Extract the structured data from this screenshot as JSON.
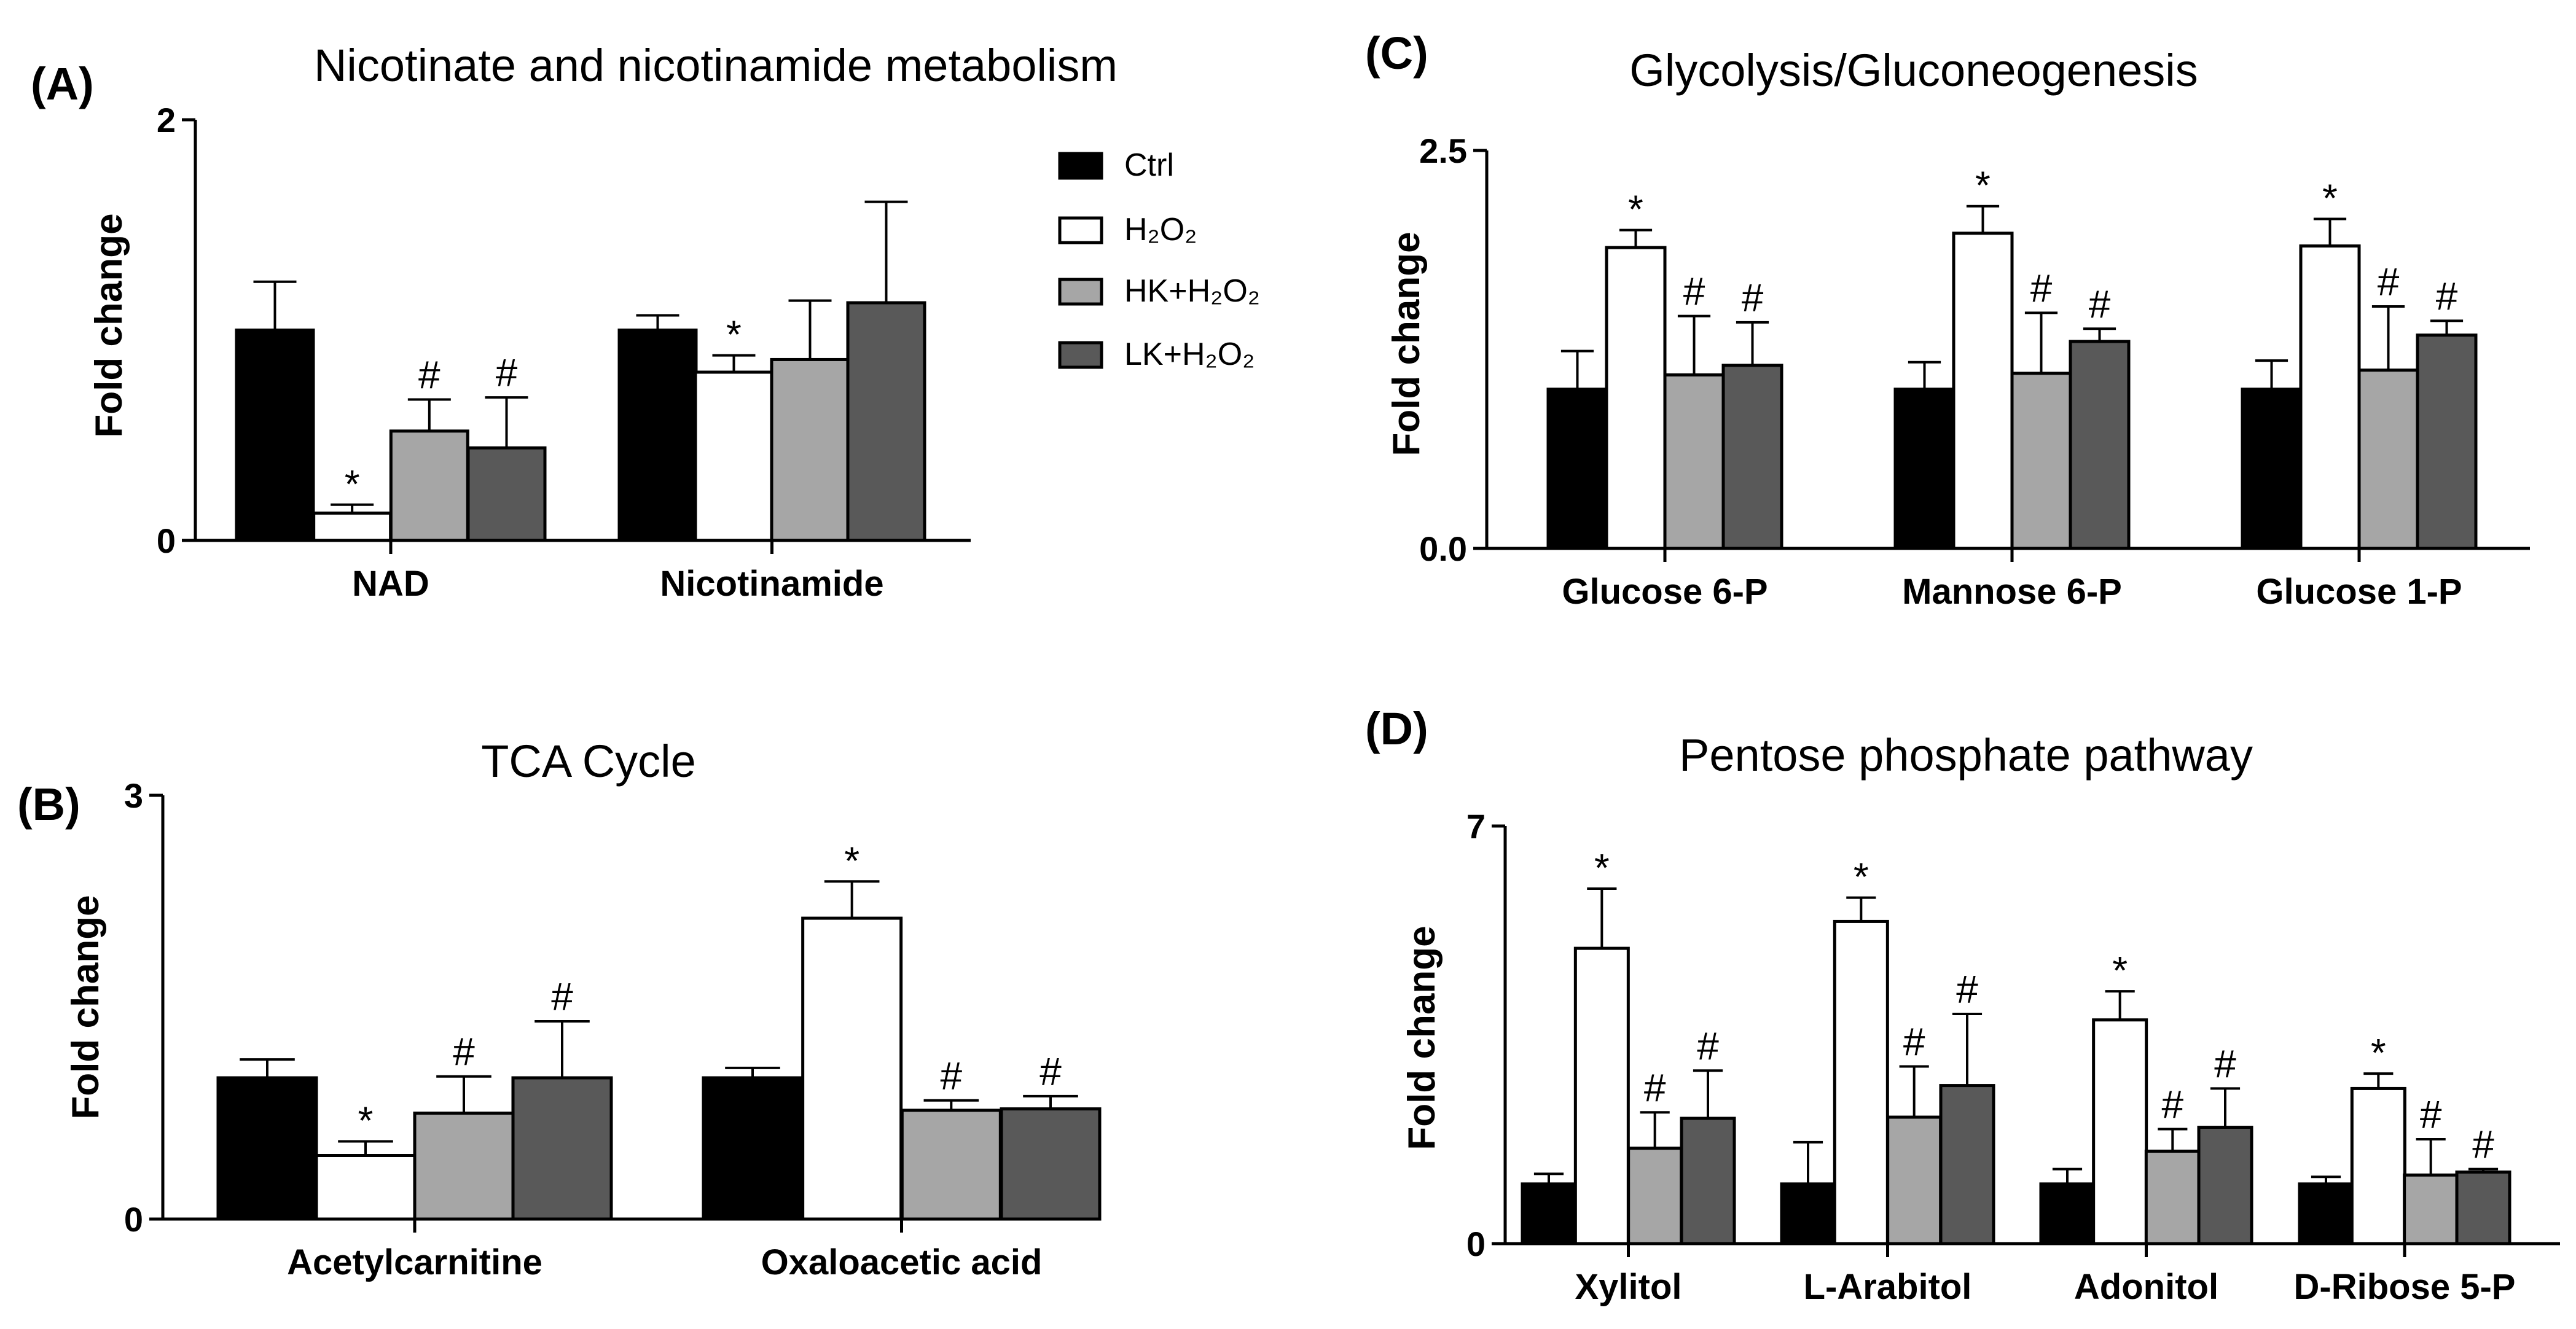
{
  "legend": {
    "items": [
      {
        "label": "Ctrl",
        "fill": "#000000"
      },
      {
        "label": "H₂O₂",
        "fill": "#ffffff"
      },
      {
        "label": "HK+H₂O₂",
        "fill": "#a6a6a6"
      },
      {
        "label": "LK+H₂O₂",
        "fill": "#595959"
      }
    ]
  },
  "colors": {
    "ctrl": "#000000",
    "h2o2": "#ffffff",
    "hk": "#a6a6a6",
    "lk": "#595959",
    "stroke": "#000000"
  },
  "chart_data": [
    {
      "panel": "(A)",
      "type": "bar",
      "title": "Nicotinate and nicotinamide metabolism",
      "ylabel": "Fold change",
      "xlabel": "",
      "ylim": [
        0,
        2
      ],
      "ytick_labels": [
        "0",
        "2"
      ],
      "ytick_values": [
        0,
        2
      ],
      "categories": [
        "NAD",
        "Nicotinamide"
      ],
      "series": [
        {
          "name": "Ctrl",
          "values": [
            1.0,
            1.0
          ],
          "errors": [
            0.23,
            0.07
          ],
          "sig": [
            "",
            ""
          ]
        },
        {
          "name": "H2O2",
          "values": [
            0.13,
            0.8
          ],
          "errors": [
            0.04,
            0.08
          ],
          "sig": [
            "*",
            "*"
          ]
        },
        {
          "name": "HK+H2O2",
          "values": [
            0.52,
            0.86
          ],
          "errors": [
            0.15,
            0.28
          ],
          "sig": [
            "#",
            ""
          ]
        },
        {
          "name": "LK+H2O2",
          "values": [
            0.44,
            1.13
          ],
          "errors": [
            0.24,
            0.48
          ],
          "sig": [
            "#",
            ""
          ]
        }
      ]
    },
    {
      "panel": "(B)",
      "type": "bar",
      "title": "TCA Cycle",
      "ylabel": "Fold change",
      "xlabel": "",
      "ylim": [
        0,
        3
      ],
      "ytick_labels": [
        "0",
        "3"
      ],
      "ytick_values": [
        0,
        3
      ],
      "categories": [
        "Acetylcarnitine",
        "Oxaloacetic acid"
      ],
      "series": [
        {
          "name": "Ctrl",
          "values": [
            1.0,
            1.0
          ],
          "errors": [
            0.13,
            0.07
          ],
          "sig": [
            "",
            ""
          ]
        },
        {
          "name": "H2O2",
          "values": [
            0.45,
            2.13
          ],
          "errors": [
            0.1,
            0.26
          ],
          "sig": [
            "*",
            "*"
          ]
        },
        {
          "name": "HK+H2O2",
          "values": [
            0.75,
            0.77
          ],
          "errors": [
            0.26,
            0.07
          ],
          "sig": [
            "#",
            "#"
          ]
        },
        {
          "name": "LK+H2O2",
          "values": [
            1.0,
            0.78
          ],
          "errors": [
            0.4,
            0.09
          ],
          "sig": [
            "#",
            "#"
          ]
        }
      ]
    },
    {
      "panel": "(C)",
      "type": "bar",
      "title": "Glycolysis/Gluconeogenesis",
      "ylabel": "Fold change",
      "xlabel": "",
      "ylim": [
        0,
        2.5
      ],
      "ytick_labels": [
        "0.0",
        "2.5"
      ],
      "ytick_values": [
        0,
        2.5
      ],
      "categories": [
        "Glucose 6-P",
        "Mannose 6-P",
        "Glucose 1-P"
      ],
      "series": [
        {
          "name": "Ctrl",
          "values": [
            1.0,
            1.0,
            1.0
          ],
          "errors": [
            0.24,
            0.17,
            0.18
          ],
          "sig": [
            "",
            "",
            ""
          ]
        },
        {
          "name": "H2O2",
          "values": [
            1.89,
            1.98,
            1.9
          ],
          "errors": [
            0.11,
            0.17,
            0.17
          ],
          "sig": [
            "*",
            "*",
            "*"
          ]
        },
        {
          "name": "HK+H2O2",
          "values": [
            1.09,
            1.1,
            1.12
          ],
          "errors": [
            0.37,
            0.38,
            0.4
          ],
          "sig": [
            "#",
            "#",
            "#"
          ]
        },
        {
          "name": "LK+H2O2",
          "values": [
            1.15,
            1.3,
            1.34
          ],
          "errors": [
            0.27,
            0.08,
            0.09
          ],
          "sig": [
            "#",
            "#",
            "#"
          ]
        }
      ]
    },
    {
      "panel": "(D)",
      "type": "bar",
      "title": "Pentose phosphate pathway",
      "ylabel": "Fold change",
      "xlabel": "",
      "ylim": [
        0,
        7
      ],
      "ytick_labels": [
        "0",
        "7"
      ],
      "ytick_values": [
        0,
        7
      ],
      "categories": [
        "Xylitol",
        "L-Arabitol",
        "Adonitol",
        "D-Ribose 5-P"
      ],
      "series": [
        {
          "name": "Ctrl",
          "values": [
            1.0,
            1.0,
            1.0,
            1.0
          ],
          "errors": [
            0.17,
            0.7,
            0.25,
            0.12
          ],
          "sig": [
            "",
            "",
            "",
            ""
          ]
        },
        {
          "name": "H2O2",
          "values": [
            4.95,
            5.4,
            3.75,
            2.6
          ],
          "errors": [
            1.0,
            0.4,
            0.48,
            0.25
          ],
          "sig": [
            "*",
            "*",
            "*",
            "*"
          ]
        },
        {
          "name": "HK+H2O2",
          "values": [
            1.6,
            2.12,
            1.55,
            1.15
          ],
          "errors": [
            0.6,
            0.85,
            0.37,
            0.6
          ],
          "sig": [
            "#",
            "#",
            "#",
            "#"
          ]
        },
        {
          "name": "LK+H2O2",
          "values": [
            2.1,
            2.65,
            1.95,
            1.2
          ],
          "errors": [
            0.8,
            1.2,
            0.65,
            0.05
          ],
          "sig": [
            "#",
            "#",
            "#",
            "#"
          ]
        }
      ]
    }
  ]
}
